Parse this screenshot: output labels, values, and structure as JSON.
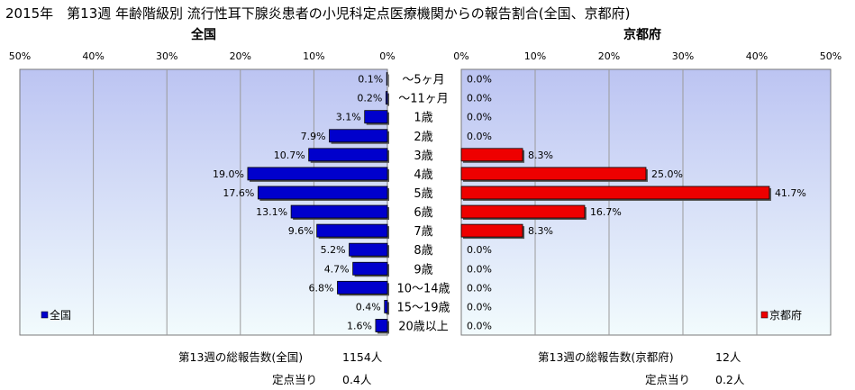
{
  "title": "2015年　第13週 年齢階級別 流行性耳下腺炎患者の小児科定点医療機関からの報告割合(全国、京都府)",
  "colors": {
    "national_bar": "#0000cc",
    "kyoto_bar": "#ee0000",
    "plot_bg_top": "#bcc4f2",
    "plot_bg_bottom": "#f2fbfd",
    "grid": "#9a9a9a"
  },
  "chart_data": [
    {
      "type": "bar",
      "orientation": "horizontal",
      "direction": "right-to-left",
      "title": "全国",
      "xlim": [
        0,
        50
      ],
      "xticks": [
        "50%",
        "40%",
        "30%",
        "20%",
        "10%",
        "0%"
      ],
      "legend": {
        "label": "全国",
        "position": "bottom-left"
      },
      "categories": [
        "〜5ヶ月",
        "〜11ヶ月",
        "1歳",
        "2歳",
        "3歳",
        "4歳",
        "5歳",
        "6歳",
        "7歳",
        "8歳",
        "9歳",
        "10〜14歳",
        "15〜19歳",
        "20歳以上"
      ],
      "values": [
        0.1,
        0.2,
        3.1,
        7.9,
        10.7,
        19.0,
        17.6,
        13.1,
        9.6,
        5.2,
        4.7,
        6.8,
        0.4,
        1.6
      ],
      "labels": [
        "0.1%",
        "0.2%",
        "3.1%",
        "7.9%",
        "10.7%",
        "19.0%",
        "17.6%",
        "13.1%",
        "9.6%",
        "5.2%",
        "4.7%",
        "6.8%",
        "0.4%",
        "1.6%"
      ],
      "grid": true
    },
    {
      "type": "bar",
      "orientation": "horizontal",
      "direction": "left-to-right",
      "title": "京都府",
      "xlim": [
        0,
        50
      ],
      "xticks": [
        "0%",
        "10%",
        "20%",
        "30%",
        "40%",
        "50%"
      ],
      "legend": {
        "label": "京都府",
        "position": "bottom-right"
      },
      "categories": [
        "〜5ヶ月",
        "〜11ヶ月",
        "1歳",
        "2歳",
        "3歳",
        "4歳",
        "5歳",
        "6歳",
        "7歳",
        "8歳",
        "9歳",
        "10〜14歳",
        "15〜19歳",
        "20歳以上"
      ],
      "values": [
        0.0,
        0.0,
        0.0,
        0.0,
        8.3,
        25.0,
        41.7,
        16.7,
        8.3,
        0.0,
        0.0,
        0.0,
        0.0,
        0.0
      ],
      "labels": [
        "0.0%",
        "0.0%",
        "0.0%",
        "0.0%",
        "8.3%",
        "25.0%",
        "41.7%",
        "16.7%",
        "8.3%",
        "0.0%",
        "0.0%",
        "0.0%",
        "0.0%",
        "0.0%"
      ],
      "grid": true
    }
  ],
  "footer": {
    "national_total_label": "第13週の総報告数(全国)",
    "national_total_value": "1154人",
    "national_per_label": "定点当り",
    "national_per_value": "0.4人",
    "kyoto_total_label": "第13週の総報告数(京都府)",
    "kyoto_total_value": "12人",
    "kyoto_per_label": "定点当り",
    "kyoto_per_value": "0.2人"
  }
}
